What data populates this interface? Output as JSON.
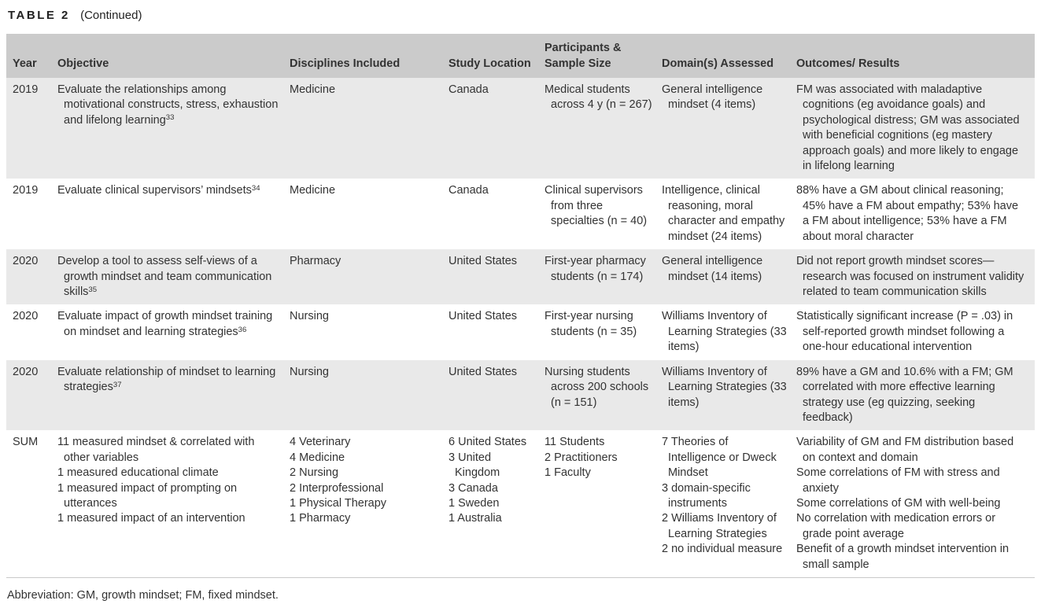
{
  "page": {
    "title": "TABLE 2",
    "title_suffix": "(Continued)",
    "footnote": "Abbreviation: GM, growth mindset; FM, fixed mindset."
  },
  "colors": {
    "header_bg": "#cbcbcb",
    "row_stripe_bg": "#e9e9e9",
    "row_plain_bg": "#ffffff",
    "text": "#333333",
    "table_bottom_rule": "#c9c9c9"
  },
  "table": {
    "headers": [
      "Year",
      "Objective",
      "Disciplines Included",
      "Study Location",
      "Participants & Sample Size",
      "Domain(s) Assessed",
      "Outcomes/ Results"
    ],
    "rows": [
      {
        "year": "2019",
        "objective": {
          "lines": [
            "Evaluate the relationships among motivational constructs, stress, exhaustion and lifelong learning"
          ],
          "ref": "33"
        },
        "disciplines": [
          "Medicine"
        ],
        "study_location": [
          "Canada"
        ],
        "participants": [
          "Medical students across 4 y (n = 267)"
        ],
        "domains": [
          "General intelligence mindset (4 items)"
        ],
        "outcomes": [
          "FM was associated with maladaptive cognitions (eg avoidance goals) and psychological distress; GM was associated with beneficial cognitions (eg mastery approach goals) and more likely to engage in lifelong learning"
        ]
      },
      {
        "year": "2019",
        "objective": {
          "lines": [
            "Evaluate clinical supervisors’ mindsets"
          ],
          "ref": "34"
        },
        "disciplines": [
          "Medicine"
        ],
        "study_location": [
          "Canada"
        ],
        "participants": [
          "Clinical supervisors from three specialties (n = 40)"
        ],
        "domains": [
          "Intelligence, clinical reasoning, moral character and empathy mindset (24 items)"
        ],
        "outcomes": [
          "88% have a GM about clinical reasoning; 45% have a FM about empathy; 53% have a FM about intelligence; 53% have a FM about moral character"
        ]
      },
      {
        "year": "2020",
        "objective": {
          "lines": [
            "Develop a tool to assess self-views of a growth mindset and team communication skills"
          ],
          "ref": "35"
        },
        "disciplines": [
          "Pharmacy"
        ],
        "study_location": [
          "United States"
        ],
        "participants": [
          "First-year pharmacy students (n = 174)"
        ],
        "domains": [
          "General intelligence mindset (14 items)"
        ],
        "outcomes": [
          "Did not report growth mindset scores—research was focused on instrument validity related to team communication skills"
        ]
      },
      {
        "year": "2020",
        "objective": {
          "lines": [
            "Evaluate impact of growth mindset training on mindset and learning strategies"
          ],
          "ref": "36"
        },
        "disciplines": [
          "Nursing"
        ],
        "study_location": [
          "United States"
        ],
        "participants": [
          "First-year nursing students (n = 35)"
        ],
        "domains": [
          "Williams Inventory of Learning Strategies (33 items)"
        ],
        "outcomes": [
          "Statistically significant increase (P = .03) in self-reported growth mindset following a one-hour educational intervention"
        ]
      },
      {
        "year": "2020",
        "objective": {
          "lines": [
            "Evaluate relationship of mindset to learning strategies"
          ],
          "ref": "37"
        },
        "disciplines": [
          "Nursing"
        ],
        "study_location": [
          "United States"
        ],
        "participants": [
          "Nursing students across 200 schools (n = 151)"
        ],
        "domains": [
          "Williams Inventory of Learning Strategies (33 items)"
        ],
        "outcomes": [
          "89% have a GM and 10.6% with a FM; GM correlated with more effective learning strategy use (eg quizzing, seeking feedback)"
        ]
      },
      {
        "year": "SUM",
        "objective": {
          "lines": [
            "11 measured mindset & correlated with other variables",
            "1 measured educational climate",
            "1 measured impact of prompting on utterances",
            "1 measured impact of an intervention"
          ],
          "ref": null
        },
        "disciplines": [
          "4 Veterinary",
          "4 Medicine",
          "2 Nursing",
          "2 Interprofessional",
          "1 Physical Therapy",
          "1 Pharmacy"
        ],
        "study_location": [
          "6 United States",
          "3 United Kingdom",
          "3 Canada",
          "1 Sweden",
          "1 Australia"
        ],
        "participants": [
          "11 Students",
          "2 Practitioners",
          "1 Faculty"
        ],
        "domains": [
          "7 Theories of Intelligence or Dweck Mindset",
          "3 domain-specific instruments",
          "2 Williams Inventory of Learning Strategies",
          "2 no individual measure"
        ],
        "outcomes": [
          "Variability of GM and FM distribution based on context and domain",
          "Some correlations of FM with stress and anxiety",
          "Some correlations of GM with well-being",
          "No correlation with medication errors or grade point average",
          "Benefit of a growth mindset intervention in small sample"
        ]
      }
    ]
  }
}
